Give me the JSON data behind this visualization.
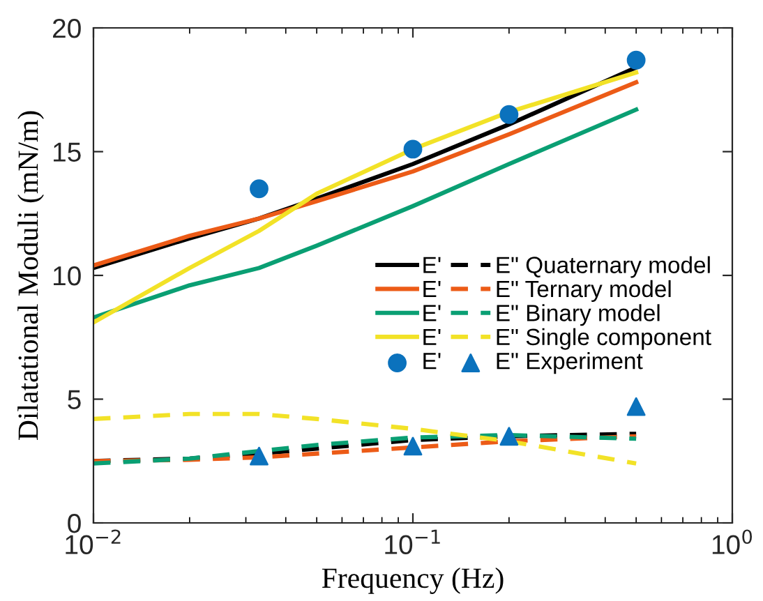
{
  "chart_data": {
    "type": "line",
    "xlabel": "Frequency (Hz)",
    "ylabel": "Dilatational Moduli (mN/m)",
    "log": "x",
    "xlim": [
      0.01,
      1
    ],
    "ylim": [
      0,
      20
    ],
    "xticks": [
      {
        "value": 0.01,
        "label": "10$^{−2}$"
      },
      {
        "value": 0.1,
        "label": "10$^{−1}$"
      },
      {
        "value": 1,
        "label": "10$^{0}$"
      }
    ],
    "yticks": [
      0,
      5,
      10,
      15,
      20
    ],
    "grid": false,
    "legend": "right",
    "series": [
      {
        "name": "E'",
        "color": "#000000",
        "line_style": "solid",
        "x": [
          0.01,
          0.02,
          0.033,
          0.05,
          0.1,
          0.2,
          0.5
        ],
        "values": [
          10.3,
          11.5,
          12.3,
          13.1,
          14.5,
          16.1,
          18.4
        ]
      },
      {
        "name": "E'",
        "color": "#ec5b17",
        "line_style": "solid",
        "x": [
          0.01,
          0.02,
          0.033,
          0.05,
          0.1,
          0.2,
          0.5
        ],
        "values": [
          10.4,
          11.6,
          12.3,
          13.0,
          14.2,
          15.7,
          17.8
        ]
      },
      {
        "name": "E'",
        "color": "#0a9f73",
        "line_style": "solid",
        "x": [
          0.01,
          0.02,
          0.033,
          0.05,
          0.1,
          0.2,
          0.5
        ],
        "values": [
          8.3,
          9.6,
          10.3,
          11.2,
          12.8,
          14.5,
          16.7
        ]
      },
      {
        "name": "E'",
        "color": "#f2e227",
        "line_style": "solid",
        "x": [
          0.01,
          0.02,
          0.033,
          0.05,
          0.1,
          0.2,
          0.5
        ],
        "values": [
          8.1,
          10.3,
          11.8,
          13.3,
          15.1,
          16.6,
          18.2
        ]
      },
      {
        "name": "E'",
        "type": "scatter",
        "marker": "circle",
        "color": "#0b72bd",
        "x": [
          0.033,
          0.1,
          0.2,
          0.5
        ],
        "values": [
          13.5,
          15.1,
          16.5,
          18.7
        ]
      },
      {
        "name": "E\" Quaternary model",
        "color": "#000000",
        "line_style": "dashed",
        "x": [
          0.01,
          0.02,
          0.033,
          0.05,
          0.1,
          0.2,
          0.5
        ],
        "values": [
          2.5,
          2.6,
          2.8,
          3.0,
          3.35,
          3.5,
          3.6
        ]
      },
      {
        "name": "E\" Ternary model",
        "color": "#ec5b17",
        "line_style": "dashed",
        "x": [
          0.01,
          0.02,
          0.033,
          0.05,
          0.1,
          0.2,
          0.5
        ],
        "values": [
          2.5,
          2.55,
          2.65,
          2.8,
          3.05,
          3.3,
          3.5
        ]
      },
      {
        "name": "E\" Binary model",
        "color": "#0a9f73",
        "line_style": "dashed",
        "x": [
          0.01,
          0.02,
          0.033,
          0.05,
          0.1,
          0.2,
          0.5
        ],
        "values": [
          2.4,
          2.6,
          2.9,
          3.15,
          3.45,
          3.55,
          3.4
        ]
      },
      {
        "name": "E\" Single component",
        "color": "#f2e227",
        "line_style": "dashed",
        "x": [
          0.01,
          0.02,
          0.033,
          0.05,
          0.1,
          0.2,
          0.5
        ],
        "values": [
          4.2,
          4.4,
          4.4,
          4.2,
          3.8,
          3.3,
          2.4
        ]
      },
      {
        "name": "E\" Experiment",
        "type": "scatter",
        "marker": "triangle",
        "color": "#0b72bd",
        "x": [
          0.033,
          0.1,
          0.2,
          0.5
        ],
        "values": [
          2.7,
          3.1,
          3.5,
          4.7
        ]
      }
    ]
  }
}
